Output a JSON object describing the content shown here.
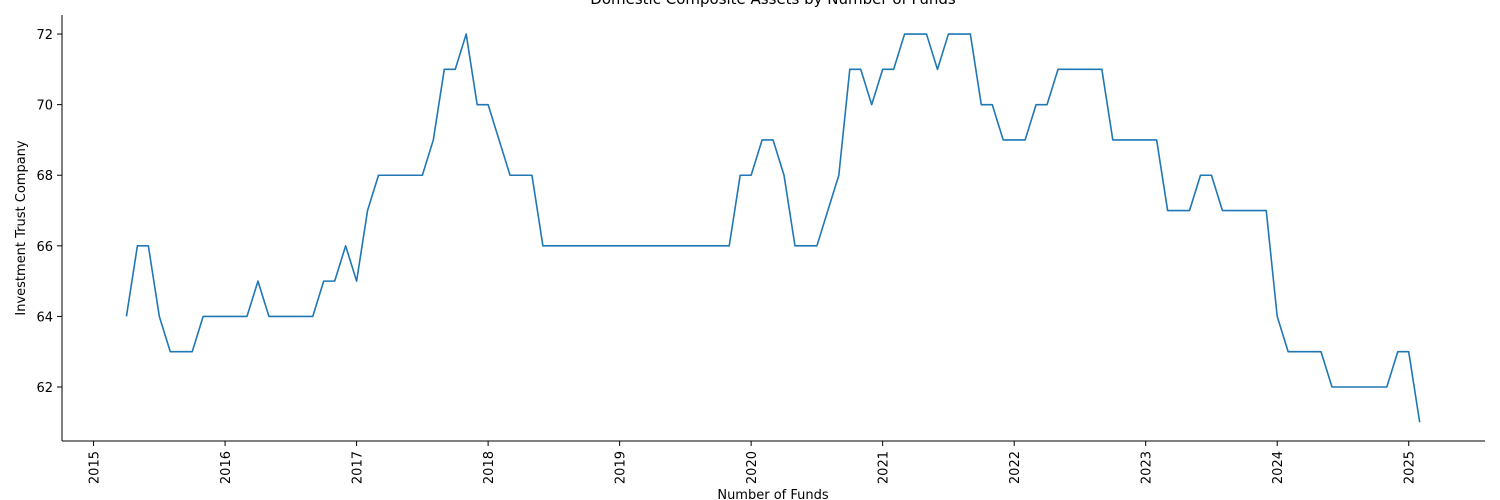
{
  "chart_data": {
    "type": "line",
    "title": "Domestic Composite Assets by Number of Funds",
    "xlabel": "Number of Funds",
    "ylabel": "Investment Trust Company",
    "x": [
      "2015-04",
      "2015-05",
      "2015-06",
      "2015-07",
      "2015-08",
      "2015-09",
      "2015-10",
      "2015-11",
      "2015-12",
      "2016-01",
      "2016-02",
      "2016-03",
      "2016-04",
      "2016-05",
      "2016-06",
      "2016-07",
      "2016-08",
      "2016-09",
      "2016-10",
      "2016-11",
      "2016-12",
      "2017-01",
      "2017-02",
      "2017-03",
      "2017-04",
      "2017-05",
      "2017-06",
      "2017-07",
      "2017-08",
      "2017-09",
      "2017-10",
      "2017-11",
      "2017-12",
      "2018-01",
      "2018-02",
      "2018-03",
      "2018-04",
      "2018-05",
      "2018-06",
      "2018-07",
      "2018-08",
      "2018-09",
      "2018-10",
      "2018-11",
      "2018-12",
      "2019-01",
      "2019-02",
      "2019-03",
      "2019-04",
      "2019-05",
      "2019-06",
      "2019-07",
      "2019-08",
      "2019-09",
      "2019-10",
      "2019-11",
      "2019-12",
      "2020-01",
      "2020-02",
      "2020-03",
      "2020-04",
      "2020-05",
      "2020-06",
      "2020-07",
      "2020-08",
      "2020-09",
      "2020-10",
      "2020-11",
      "2020-12",
      "2021-01",
      "2021-02",
      "2021-03",
      "2021-04",
      "2021-05",
      "2021-06",
      "2021-07",
      "2021-08",
      "2021-09",
      "2021-10",
      "2021-11",
      "2021-12",
      "2022-01",
      "2022-02",
      "2022-03",
      "2022-04",
      "2022-05",
      "2022-06",
      "2022-07",
      "2022-08",
      "2022-09",
      "2022-10",
      "2022-11",
      "2022-12",
      "2023-01",
      "2023-02",
      "2023-03",
      "2023-04",
      "2023-05",
      "2023-06",
      "2023-07",
      "2023-08",
      "2023-09",
      "2023-10",
      "2023-11",
      "2023-12",
      "2024-01",
      "2024-02",
      "2024-03",
      "2024-04",
      "2024-05",
      "2024-06",
      "2024-07",
      "2024-08",
      "2024-09",
      "2024-10",
      "2024-11",
      "2024-12",
      "2025-01",
      "2025-02"
    ],
    "series": [
      {
        "name": "Investment Trust Company",
        "color": "#1f77b4",
        "values": [
          64,
          66,
          66,
          64,
          63,
          63,
          63,
          64,
          64,
          64,
          64,
          64,
          65,
          64,
          64,
          64,
          64,
          64,
          65,
          65,
          66,
          65,
          67,
          68,
          68,
          68,
          68,
          68,
          69,
          71,
          71,
          72,
          70,
          70,
          69,
          68,
          68,
          68,
          66,
          66,
          66,
          66,
          66,
          66,
          66,
          66,
          66,
          66,
          66,
          66,
          66,
          66,
          66,
          66,
          66,
          66,
          68,
          68,
          69,
          69,
          68,
          66,
          66,
          66,
          67,
          68,
          71,
          71,
          70,
          71,
          71,
          72,
          72,
          72,
          71,
          72,
          72,
          72,
          70,
          70,
          69,
          69,
          69,
          70,
          70,
          71,
          71,
          71,
          71,
          71,
          69,
          69,
          69,
          69,
          69,
          67,
          67,
          67,
          68,
          68,
          67,
          67,
          67,
          67,
          67,
          64,
          63,
          63,
          63,
          63,
          62,
          62,
          62,
          62,
          62,
          62,
          63,
          63,
          61
        ]
      }
    ],
    "xlim": [
      2014.76,
      2025.58
    ],
    "xticks": [
      2015,
      2016,
      2017,
      2018,
      2019,
      2020,
      2021,
      2022,
      2023,
      2024,
      2025
    ],
    "ylim": [
      60.47,
      72.54
    ],
    "yticks": [
      62,
      64,
      66,
      68,
      70,
      72
    ]
  }
}
